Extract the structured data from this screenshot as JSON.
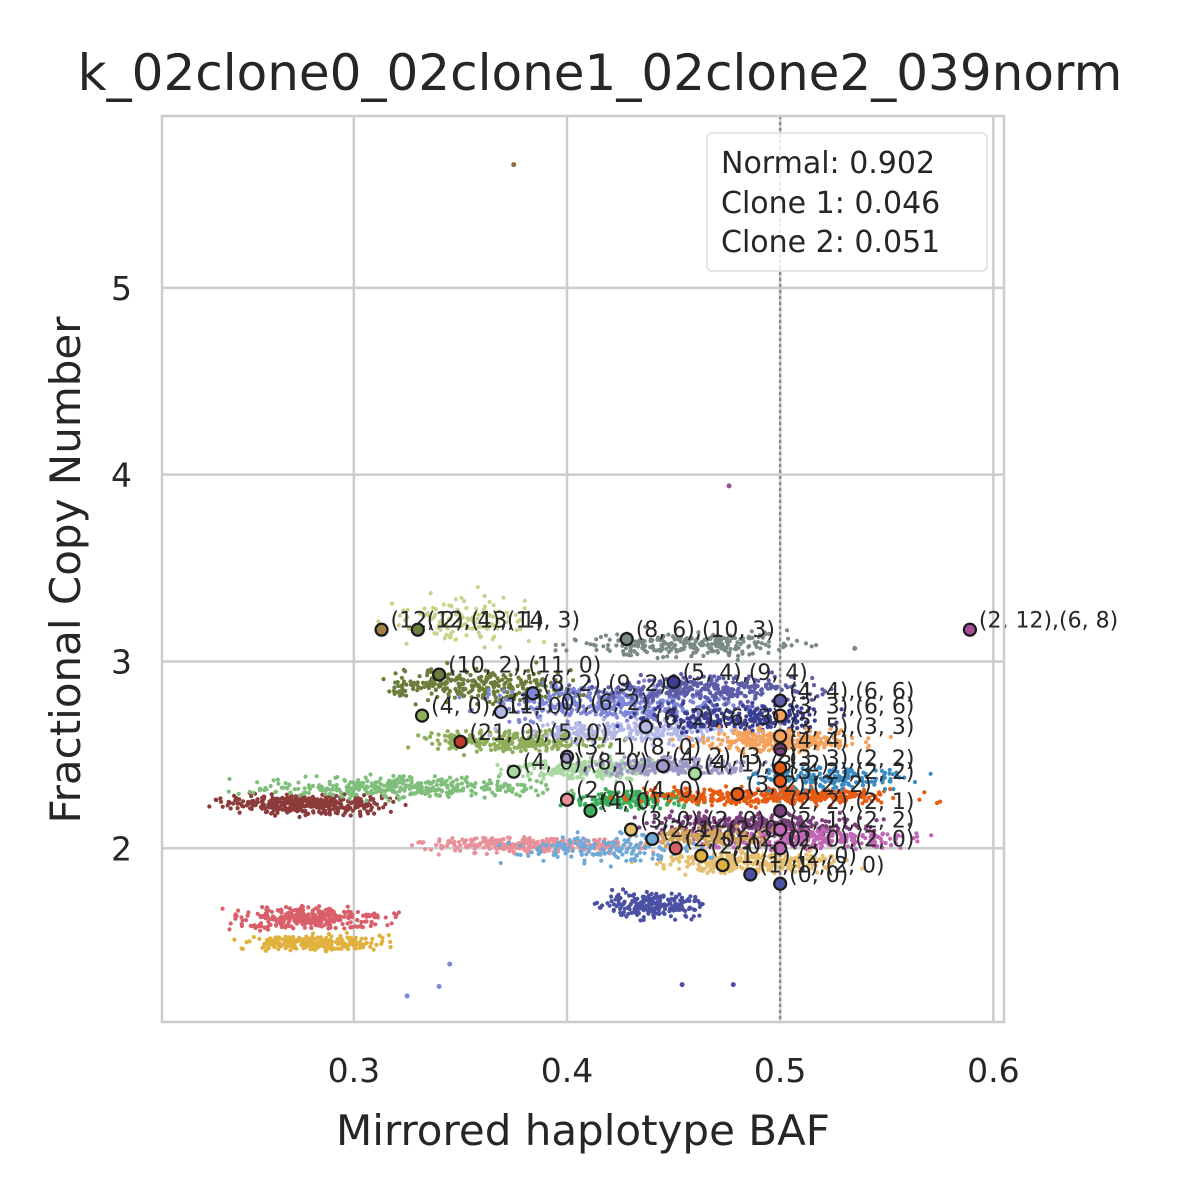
{
  "chart_data": {
    "type": "scatter",
    "title": "k_02clone0_02clone1_02clone2_039norm",
    "xlabel": "Mirrored haplotype BAF",
    "ylabel": "Fractional Copy Number",
    "xlim": [
      0.21,
      0.605
    ],
    "ylim": [
      1.07,
      5.92
    ],
    "xticks": [
      0.3,
      0.4,
      0.5,
      0.6
    ],
    "yticks": [
      2,
      3,
      4,
      5
    ],
    "xtick_labels": [
      "0.3",
      "0.4",
      "0.5",
      "0.6"
    ],
    "ytick_labels": [
      "2",
      "3",
      "4",
      "5"
    ],
    "grid": true,
    "vline_x": 0.5,
    "legend": {
      "placement": "top-right",
      "lines": [
        "Normal: 0.902",
        "Clone 1: 0.046",
        "Clone 2: 0.051"
      ]
    },
    "clusters": [
      {
        "color": "#8c3b3b",
        "x": [
          0.23,
          0.325
        ],
        "y": [
          2.17,
          2.3
        ],
        "n": 420
      },
      {
        "color": "#7fbf7b",
        "x": [
          0.235,
          0.41
        ],
        "y": [
          2.25,
          2.4
        ],
        "n": 360
      },
      {
        "color": "#d95f6a",
        "x": [
          0.235,
          0.325
        ],
        "y": [
          1.55,
          1.7
        ],
        "n": 320
      },
      {
        "color": "#e0b13c",
        "x": [
          0.24,
          0.32
        ],
        "y": [
          1.44,
          1.55
        ],
        "n": 240
      },
      {
        "color": "#e8919a",
        "x": [
          0.32,
          0.45
        ],
        "y": [
          1.96,
          2.07
        ],
        "n": 300
      },
      {
        "color": "#6b7d3a",
        "x": [
          0.3,
          0.42
        ],
        "y": [
          2.75,
          3.0
        ],
        "n": 300
      },
      {
        "color": "#c7d38a",
        "x": [
          0.31,
          0.39
        ],
        "y": [
          3.05,
          3.4
        ],
        "n": 130
      },
      {
        "color": "#8fae5b",
        "x": [
          0.32,
          0.43
        ],
        "y": [
          2.5,
          2.65
        ],
        "n": 280
      },
      {
        "color": "#7a8a86",
        "x": [
          0.39,
          0.53
        ],
        "y": [
          3.0,
          3.18
        ],
        "n": 260
      },
      {
        "color": "#7f87d9",
        "x": [
          0.35,
          0.5
        ],
        "y": [
          2.65,
          2.9
        ],
        "n": 420
      },
      {
        "color": "#b4b8e6",
        "x": [
          0.36,
          0.5
        ],
        "y": [
          2.55,
          2.7
        ],
        "n": 260
      },
      {
        "color": "#a9d8a2",
        "x": [
          0.36,
          0.46
        ],
        "y": [
          2.35,
          2.5
        ],
        "n": 220
      },
      {
        "color": "#3dae5b",
        "x": [
          0.39,
          0.47
        ],
        "y": [
          2.2,
          2.32
        ],
        "n": 200
      },
      {
        "color": "#5c5ca8",
        "x": [
          0.4,
          0.53
        ],
        "y": [
          2.75,
          2.95
        ],
        "n": 300
      },
      {
        "color": "#3a3f94",
        "x": [
          0.42,
          0.54
        ],
        "y": [
          2.6,
          2.8
        ],
        "n": 260
      },
      {
        "color": "#4b51a3",
        "x": [
          0.41,
          0.47
        ],
        "y": [
          1.6,
          1.8
        ],
        "n": 220
      },
      {
        "color": "#f5a25d",
        "x": [
          0.45,
          0.55
        ],
        "y": [
          2.5,
          2.65
        ],
        "n": 280
      },
      {
        "color": "#e75b12",
        "x": [
          0.42,
          0.575
        ],
        "y": [
          2.22,
          2.34
        ],
        "n": 420
      },
      {
        "color": "#7a3f7a",
        "x": [
          0.42,
          0.56
        ],
        "y": [
          2.05,
          2.2
        ],
        "n": 320
      },
      {
        "color": "#c067b5",
        "x": [
          0.45,
          0.575
        ],
        "y": [
          1.98,
          2.12
        ],
        "n": 280
      },
      {
        "color": "#e6c070",
        "x": [
          0.43,
          0.54
        ],
        "y": [
          1.85,
          2.0
        ],
        "n": 300
      },
      {
        "color": "#6fa9d6",
        "x": [
          0.36,
          0.48
        ],
        "y": [
          1.9,
          2.1
        ],
        "n": 160
      },
      {
        "color": "#9e9ac8",
        "x": [
          0.4,
          0.5
        ],
        "y": [
          2.38,
          2.5
        ],
        "n": 200
      },
      {
        "color": "#d2a45a",
        "x": [
          0.43,
          0.5
        ],
        "y": [
          2.0,
          2.12
        ],
        "n": 160
      },
      {
        "color": "#3b8bc2",
        "x": [
          0.48,
          0.575
        ],
        "y": [
          2.3,
          2.45
        ],
        "n": 160
      }
    ],
    "outliers": [
      {
        "x": 0.375,
        "y": 5.66,
        "color": "#8c6a3b"
      },
      {
        "x": 0.476,
        "y": 3.94,
        "color": "#9c4f96"
      },
      {
        "x": 0.454,
        "y": 1.27,
        "color": "#4b51a3"
      },
      {
        "x": 0.478,
        "y": 1.27,
        "color": "#4b51a3"
      },
      {
        "x": 0.535,
        "y": 3.07,
        "color": "#7a8a86"
      },
      {
        "x": 0.287,
        "y": 1.45,
        "color": "#e0b13c"
      },
      {
        "x": 0.345,
        "y": 1.38,
        "color": "#7f87d9"
      },
      {
        "x": 0.34,
        "y": 1.26,
        "color": "#7f87d9"
      },
      {
        "x": 0.325,
        "y": 1.21,
        "color": "#7f87d9"
      }
    ],
    "cluster_centers": [
      {
        "x": 0.313,
        "y": 3.17,
        "color": "#a37f45",
        "label": "(12, 2),(13, 1)"
      },
      {
        "x": 0.33,
        "y": 3.17,
        "color": "#6b7d3a",
        "label": "(12, 4),(14, 3)"
      },
      {
        "x": 0.428,
        "y": 3.12,
        "color": "#7a8a86",
        "label": "(8, 6),(10, 3)"
      },
      {
        "x": 0.589,
        "y": 3.17,
        "color": "#a64d9a",
        "label": "(2, 12),(6, 8)"
      },
      {
        "x": 0.34,
        "y": 2.93,
        "color": "#6b7d3a",
        "label": "(10, 2),(11, 0)"
      },
      {
        "x": 0.45,
        "y": 2.89,
        "color": "#3a3f94",
        "label": "(5, 4),(9, 4)"
      },
      {
        "x": 0.384,
        "y": 2.83,
        "color": "#7f87d9",
        "label": "(8, 2),(9, 2)"
      },
      {
        "x": 0.5,
        "y": 2.79,
        "color": "#5c5ca8",
        "label": "(4, 4),(6, 6)"
      },
      {
        "x": 0.332,
        "y": 2.71,
        "color": "#8fae5b",
        "label": "(4, 0),(11, 0)"
      },
      {
        "x": 0.369,
        "y": 2.73,
        "color": "#b4b8e6",
        "label": "(11, 0),(6, 2)"
      },
      {
        "x": 0.5,
        "y": 2.71,
        "color": "#f5a25d",
        "label": "(3, 3),(6, 6)"
      },
      {
        "x": 0.35,
        "y": 2.57,
        "color": "#c0392b",
        "label": "(21, 0),(5, 0)"
      },
      {
        "x": 0.437,
        "y": 2.65,
        "color": "#b4b8e6",
        "label": "(6, 2),(6, 3)"
      },
      {
        "x": 0.5,
        "y": 2.6,
        "color": "#f5a25d",
        "label": "(3, 5),(3, 3)"
      },
      {
        "x": 0.4,
        "y": 2.49,
        "color": "#9e9ac8",
        "label": "(3, 1),(8, 0)"
      },
      {
        "x": 0.5,
        "y": 2.53,
        "color": "#7a3f7a",
        "label": "(4, 4)"
      },
      {
        "x": 0.375,
        "y": 2.41,
        "color": "#a9d8a2",
        "label": "(4, 0),(8, 0)"
      },
      {
        "x": 0.445,
        "y": 2.44,
        "color": "#9e9ac8",
        "label": "(4, 2),(3, 2)"
      },
      {
        "x": 0.46,
        "y": 2.4,
        "color": "#a9d8a2",
        "label": "(4, 1),(3, 2)"
      },
      {
        "x": 0.5,
        "y": 2.43,
        "color": "#e75b12",
        "label": "(3, 3),(2, 2)"
      },
      {
        "x": 0.5,
        "y": 2.36,
        "color": "#e75b12",
        "label": "(3, 2),(2, 2)"
      },
      {
        "x": 0.4,
        "y": 2.26,
        "color": "#e8919a",
        "label": "(2, 0),(4, 0)"
      },
      {
        "x": 0.411,
        "y": 2.2,
        "color": "#3dae5b",
        "label": "(4, 0)"
      },
      {
        "x": 0.48,
        "y": 2.29,
        "color": "#e75b12",
        "label": "(3, 2),(2, 2)"
      },
      {
        "x": 0.5,
        "y": 2.2,
        "color": "#7a3f7a",
        "label": "(2, 2),(2, 1)"
      },
      {
        "x": 0.43,
        "y": 2.1,
        "color": "#e6c070",
        "label": "(3, 0),(2, 0)"
      },
      {
        "x": 0.44,
        "y": 2.05,
        "color": "#6fa9d6",
        "label": "(2, 1),(2, 0)"
      },
      {
        "x": 0.451,
        "y": 2.0,
        "color": "#d95f6a",
        "label": "(2, 0),(2, 0)"
      },
      {
        "x": 0.5,
        "y": 2.1,
        "color": "#c067b5",
        "label": "(2, 1),(2, 2)"
      },
      {
        "x": 0.5,
        "y": 2.0,
        "color": "#c067b5",
        "label": "(2, 0),(2, 0)"
      },
      {
        "x": 0.463,
        "y": 1.96,
        "color": "#e0b13c",
        "label": "(2, 0)"
      },
      {
        "x": 0.473,
        "y": 1.91,
        "color": "#e0b13c",
        "label": "(1, 1),(2, 0)"
      },
      {
        "x": 0.486,
        "y": 1.86,
        "color": "#4b51a3",
        "label": "(1, 1),(2, 0)"
      },
      {
        "x": 0.5,
        "y": 1.81,
        "color": "#4b51a3",
        "label": "(0, 0)"
      }
    ]
  }
}
